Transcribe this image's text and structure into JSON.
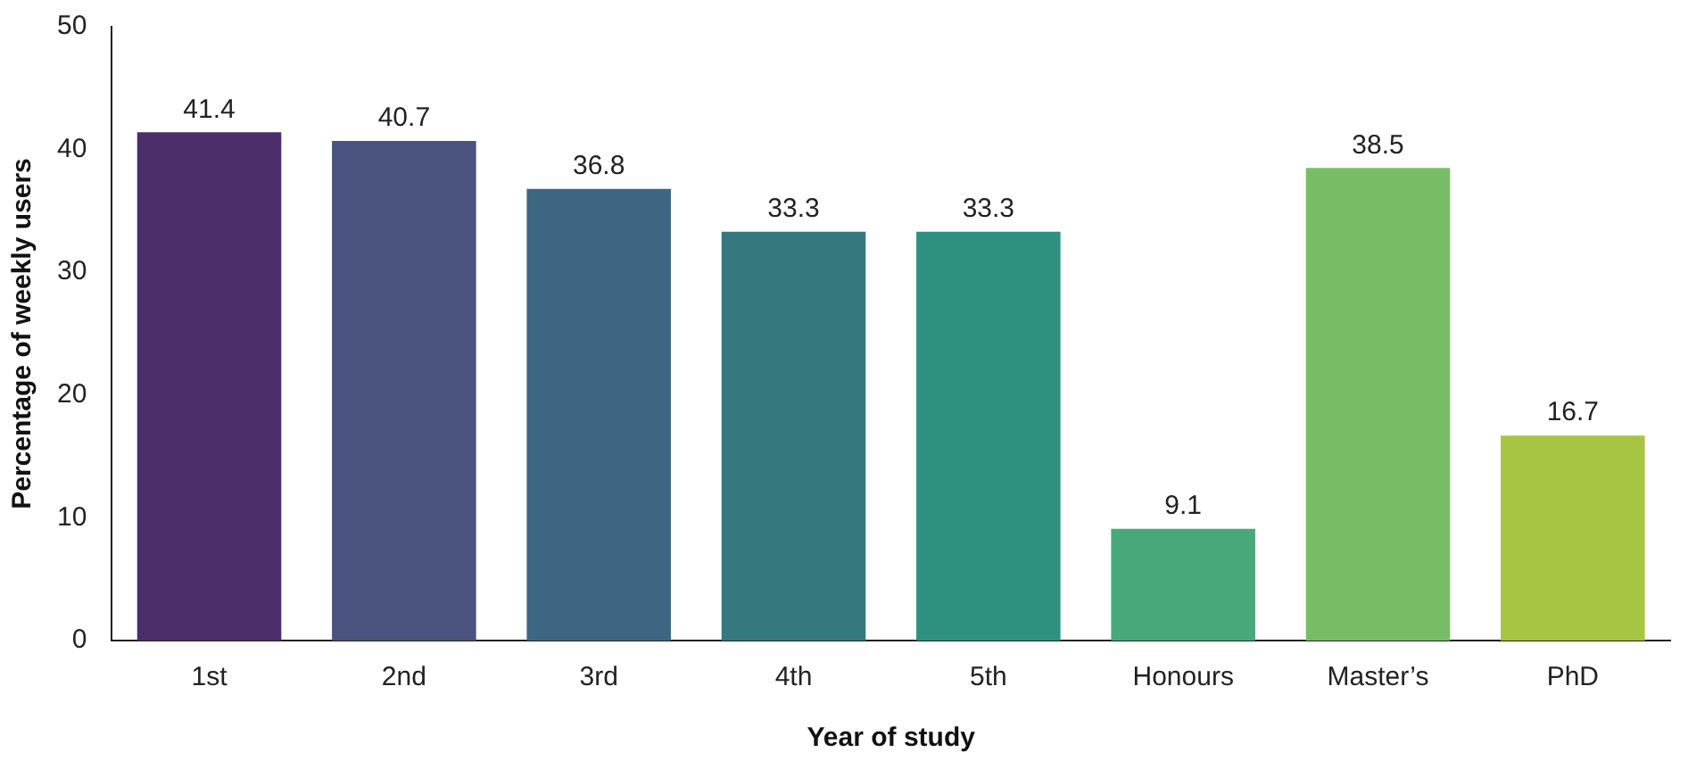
{
  "chart_data": {
    "type": "bar",
    "xlabel": "Year of study",
    "ylabel": "Percentage of weekly users",
    "categories": [
      "1st",
      "2nd",
      "3rd",
      "4th",
      "5th",
      "Honours",
      "Master’s",
      "PhD"
    ],
    "values": [
      41.4,
      40.7,
      36.8,
      33.3,
      33.3,
      9.1,
      38.5,
      16.7
    ],
    "colors": [
      "#4b2e6a",
      "#4a527f",
      "#3e6682",
      "#35797f",
      "#2e917f",
      "#48a879",
      "#77bd66",
      "#a8c542"
    ],
    "ylim": [
      0,
      50
    ],
    "yticks": [
      0,
      10,
      20,
      30,
      40,
      50
    ],
    "grid": false,
    "legend": false,
    "data_labels": true
  }
}
